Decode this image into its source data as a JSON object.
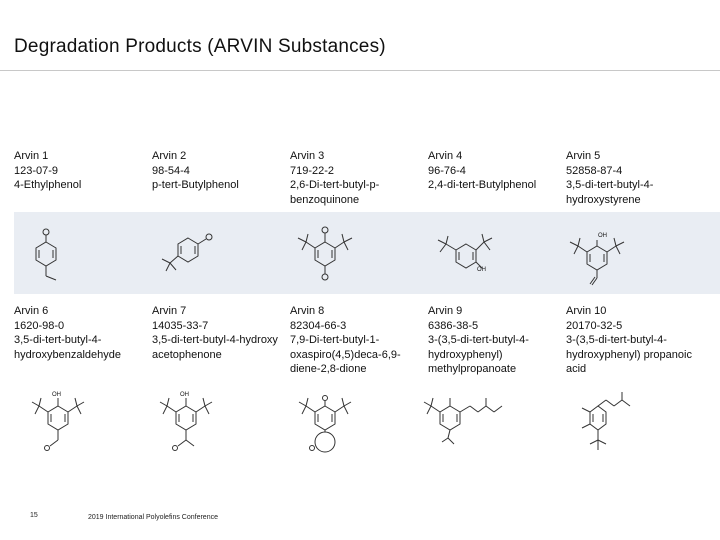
{
  "slide": {
    "title": "Degradation Products (ARVIN Substances)",
    "page_number": "15",
    "footer": "2019 International Polyolefins Conference"
  },
  "substances": [
    {
      "name": "Arvin 1",
      "cas": "123-07-9",
      "chemical": "4-Ethylphenol",
      "structure_icon": "ethylphenol-structure-icon"
    },
    {
      "name": "Arvin 2",
      "cas": "98-54-4",
      "chemical": "p-tert-Butylphenol",
      "structure_icon": "tert-butylphenol-structure-icon"
    },
    {
      "name": "Arvin 3",
      "cas": "719-22-2",
      "chemical": "2,6-Di-tert-butyl-p-benzoquinone",
      "structure_icon": "benzoquinone-structure-icon"
    },
    {
      "name": "Arvin 4",
      "cas": "96-76-4",
      "chemical": "2,4-di-tert-Butylphenol",
      "structure_icon": "di-tert-butylphenol-structure-icon"
    },
    {
      "name": "Arvin 5",
      "cas": "52858-87-4",
      "chemical": "3,5-di-tert-butyl-4-hydroxystyrene",
      "structure_icon": "hydroxystyrene-structure-icon"
    },
    {
      "name": "Arvin 6",
      "cas": "1620-98-0",
      "chemical": "3,5-di-tert-butyl-4-hydroxybenzaldehyde",
      "structure_icon": "hydroxybenzaldehyde-structure-icon"
    },
    {
      "name": "Arvin 7",
      "cas": "14035-33-7",
      "chemical": "3,5-di-tert-butyl-4-hydroxy acetophenone",
      "structure_icon": "hydroxyacetophenone-structure-icon"
    },
    {
      "name": "Arvin 8",
      "cas": "82304-66-3",
      "chemical": "7,9-Di-tert-butyl-1-oxaspiro(4,5)deca-6,9-diene-2,8-dione",
      "structure_icon": "oxaspiro-structure-icon"
    },
    {
      "name": "Arvin 9",
      "cas": "6386-38-5",
      "chemical": "3-(3,5-di-tert-butyl-4-hydroxyphenyl) methylpropanoate",
      "structure_icon": "methylpropanoate-structure-icon"
    },
    {
      "name": "Arvin 10",
      "cas": "20170-32-5",
      "chemical": "3-(3,5-di-tert-butyl-4-hydroxyphenyl) propanoic acid",
      "structure_icon": "propanoic-acid-structure-icon"
    }
  ],
  "atom_labels": {
    "oh": "OH",
    "o": "O"
  },
  "colors": {
    "band": "#e9edf3",
    "rule": "#c8c8c8"
  }
}
